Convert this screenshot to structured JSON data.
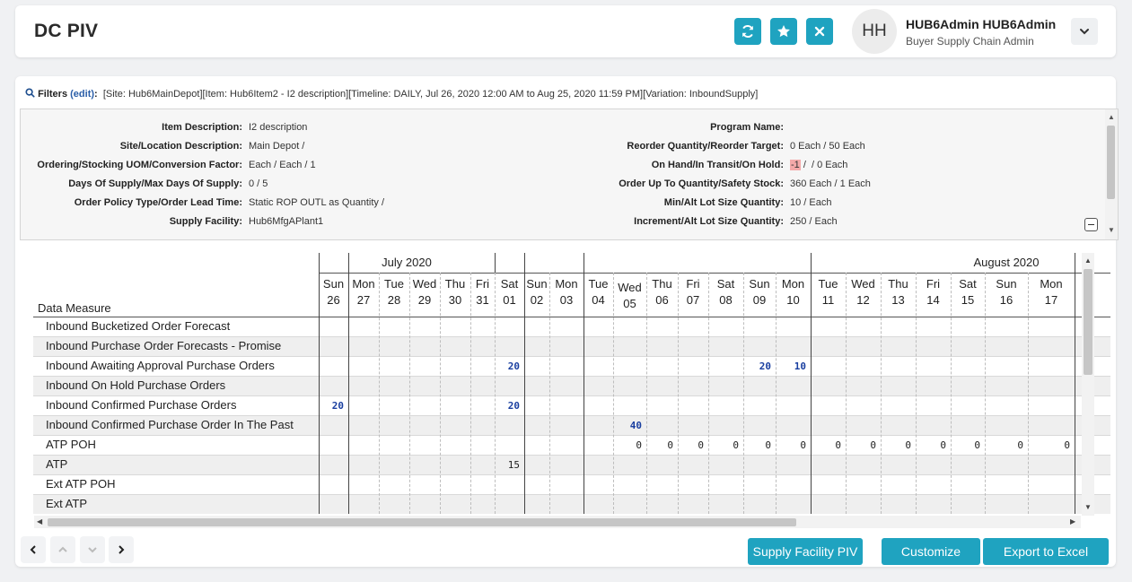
{
  "header": {
    "title": "DC PIV",
    "avatar_initials": "HH",
    "user_name": "HUB6Admin HUB6Admin",
    "user_role": "Buyer Supply Chain Admin"
  },
  "colors": {
    "accent": "#1fa3c0",
    "value_blue": "#1a3fa0",
    "highlight": "#f4a9a9"
  },
  "filters": {
    "label": "Filters",
    "edit_label": "(edit)",
    "text": "[Site: Hub6MainDepot][Item: Hub6Item2 - I2 description][Timeline: DAILY, Jul 26, 2020 12:00 AM to Aug 25, 2020 11:59 PM][Variation: InboundSupply]"
  },
  "info_left": [
    {
      "label": "Item Description:",
      "value": "I2 description"
    },
    {
      "label": "Site/Location Description:",
      "value": "Main Depot /"
    },
    {
      "label": "Ordering/Stocking UOM/Conversion Factor:",
      "value": "Each / Each / 1"
    },
    {
      "label": "Days Of Supply/Max Days Of Supply:",
      "value": "0 / 5"
    },
    {
      "label": "Order Policy Type/Order Lead Time:",
      "value": "Static ROP OUTL as Quantity /"
    },
    {
      "label": "Supply Facility:",
      "value": "Hub6MfgAPlant1"
    }
  ],
  "info_right": [
    {
      "label": "Program Name:",
      "value": ""
    },
    {
      "label": "Reorder Quantity/Reorder Target:",
      "value": "0 Each / 50 Each"
    },
    {
      "label": "On Hand/In Transit/On Hold:",
      "value_highlight": "-1",
      "value": " /  / 0 Each"
    },
    {
      "label": "Order Up To Quantity/Safety Stock:",
      "value": "360 Each / 1 Each"
    },
    {
      "label": "Min/Alt Lot Size Quantity:",
      "value": "10 /  Each"
    },
    {
      "label": "Increment/Alt Lot Size Quantity:",
      "value": "250 /  Each"
    }
  ],
  "grid": {
    "measure_header": "Data Measure",
    "months": [
      {
        "label": "July 2020"
      },
      {
        "label": "August 2020"
      }
    ],
    "days": [
      {
        "dow": "Sun",
        "d": "26"
      },
      {
        "dow": "Mon",
        "d": "27"
      },
      {
        "dow": "Tue",
        "d": "28"
      },
      {
        "dow": "Wed",
        "d": "29"
      },
      {
        "dow": "Thu",
        "d": "30"
      },
      {
        "dow": "Fri",
        "d": "31"
      },
      {
        "dow": "Sat",
        "d": "01"
      },
      {
        "dow": "Sun",
        "d": "02"
      },
      {
        "dow": "Mon",
        "d": "03"
      },
      {
        "dow": "Tue",
        "d": "04"
      },
      {
        "dow": "Wed",
        "d": "05"
      },
      {
        "dow": "Thu",
        "d": "06"
      },
      {
        "dow": "Fri",
        "d": "07"
      },
      {
        "dow": "Sat",
        "d": "08"
      },
      {
        "dow": "Sun",
        "d": "09"
      },
      {
        "dow": "Mon",
        "d": "10"
      },
      {
        "dow": "Tue",
        "d": "11"
      },
      {
        "dow": "Wed",
        "d": "12"
      },
      {
        "dow": "Thu",
        "d": "13"
      },
      {
        "dow": "Fri",
        "d": "14"
      },
      {
        "dow": "Sat",
        "d": "15"
      },
      {
        "dow": "Sun",
        "d": "16"
      },
      {
        "dow": "Mon",
        "d": "17"
      }
    ],
    "rows": [
      {
        "label": "Inbound Bucketized Order Forecast",
        "values": {}
      },
      {
        "label": "Inbound Purchase Order Forecasts - Promise",
        "values": {}
      },
      {
        "label": "Inbound Awaiting Approval Purchase Orders",
        "values": {
          "6": "20",
          "14": "20",
          "15": "10"
        },
        "style": "blue"
      },
      {
        "label": "Inbound On Hold Purchase Orders",
        "values": {}
      },
      {
        "label": "Inbound Confirmed Purchase Orders",
        "values": {
          "0": "20",
          "6": "20"
        },
        "style": "blue"
      },
      {
        "label": "Inbound Confirmed Purchase Order In The Past",
        "values": {
          "10": "40"
        },
        "style": "blue"
      },
      {
        "label": "ATP POH",
        "values": {
          "10": "0",
          "11": "0",
          "12": "0",
          "13": "0",
          "14": "0",
          "15": "0",
          "16": "0",
          "17": "0",
          "18": "0",
          "19": "0",
          "20": "0",
          "21": "0",
          "22": "0"
        },
        "style": "black"
      },
      {
        "label": "ATP",
        "values": {
          "6": "15"
        },
        "style": "black"
      },
      {
        "label": "Ext ATP POH",
        "values": {}
      },
      {
        "label": "Ext ATP",
        "values": {}
      }
    ]
  },
  "footer": {
    "supply_facility_label": "Supply Facility PIV",
    "customize_label": "Customize",
    "export_label": "Export to Excel"
  }
}
